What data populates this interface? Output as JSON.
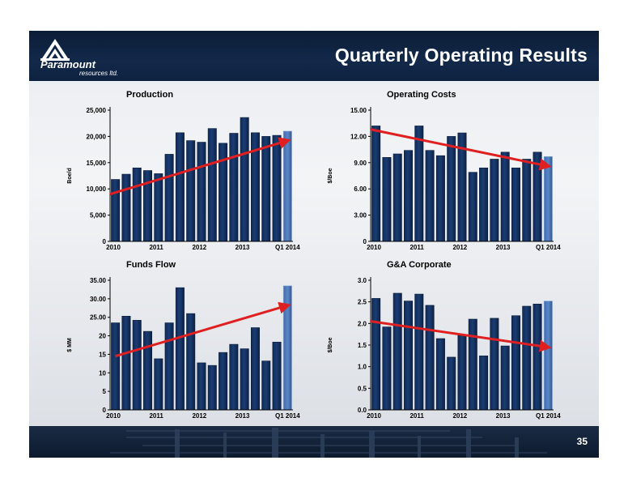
{
  "slide": {
    "title": "Quarterly Operating Results",
    "page_number": "35"
  },
  "logo": {
    "name": "Paramount",
    "sub": "resources ltd."
  },
  "colors": {
    "bar": "#1b3d73",
    "bar_highlight": "#5b86c9",
    "trend": "#e02020",
    "header": "#0e2140"
  },
  "chart_data": [
    {
      "id": "production",
      "type": "bar",
      "title": "Production",
      "ylabel": "Boe/d",
      "ylim": [
        0,
        25000
      ],
      "yticks": [
        "0",
        "5,000",
        "10,000",
        "15,000",
        "20,000",
        "25,000"
      ],
      "xticklabels": [
        "2010",
        "2011",
        "2012",
        "2013",
        "Q1 2014"
      ],
      "values": [
        11800,
        12800,
        14000,
        13500,
        12900,
        16600,
        20700,
        19200,
        18900,
        21500,
        18700,
        20600,
        23600,
        20700,
        20000,
        20200,
        21000
      ],
      "trend": {
        "from": [
          0,
          9000
        ],
        "to": [
          16,
          19200
        ]
      }
    },
    {
      "id": "operating-costs",
      "type": "bar",
      "title": "Operating Costs",
      "ylabel": "$/Boe",
      "ylim": [
        0,
        15
      ],
      "yticks": [
        "0",
        "3.00",
        "6.00",
        "9.00",
        "12.00",
        "15.00"
      ],
      "xticklabels": [
        "2010",
        "2011",
        "2012",
        "2013",
        "Q1 2014"
      ],
      "values": [
        13.2,
        9.6,
        10.0,
        10.4,
        13.2,
        10.4,
        9.8,
        12.0,
        12.4,
        7.9,
        8.4,
        9.4,
        10.2,
        8.4,
        9.4,
        10.2,
        9.7
      ],
      "trend": {
        "from": [
          0,
          12.8
        ],
        "to": [
          16,
          8.6
        ]
      }
    },
    {
      "id": "funds-flow",
      "type": "bar",
      "title": "Funds Flow",
      "ylabel": "$ MM",
      "ylim": [
        0,
        35
      ],
      "yticks": [
        "0",
        "5",
        "10",
        "15",
        "20",
        "25.00",
        "30.00",
        "35.00"
      ],
      "xticklabels": [
        "2010",
        "2011",
        "2012",
        "2013",
        "Q1 2014"
      ],
      "values": [
        23.5,
        25.3,
        24.2,
        21.2,
        13.8,
        23.5,
        33.0,
        26.0,
        12.7,
        12.0,
        15.5,
        17.7,
        16.5,
        22.2,
        13.2,
        18.3,
        33.5
      ],
      "trend": {
        "from": [
          0.5,
          14.5
        ],
        "to": [
          16,
          28.2
        ]
      }
    },
    {
      "id": "g-and-a-corporate",
      "type": "bar",
      "title": "G&A Corporate",
      "ylabel": "$/Boe",
      "ylim": [
        0,
        3
      ],
      "yticks": [
        "0.0",
        "0.5",
        "1.0",
        "1.5",
        "2.0",
        "2.5",
        "3.0"
      ],
      "xticklabels": [
        "2010",
        "2011",
        "2012",
        "2013",
        "Q1 2014"
      ],
      "values": [
        2.58,
        1.92,
        2.7,
        2.52,
        2.68,
        2.42,
        1.65,
        1.22,
        1.72,
        2.1,
        1.25,
        2.12,
        1.48,
        2.18,
        2.4,
        2.45,
        2.52
      ],
      "trend": {
        "from": [
          0,
          2.05
        ],
        "to": [
          16,
          1.45
        ]
      }
    }
  ]
}
